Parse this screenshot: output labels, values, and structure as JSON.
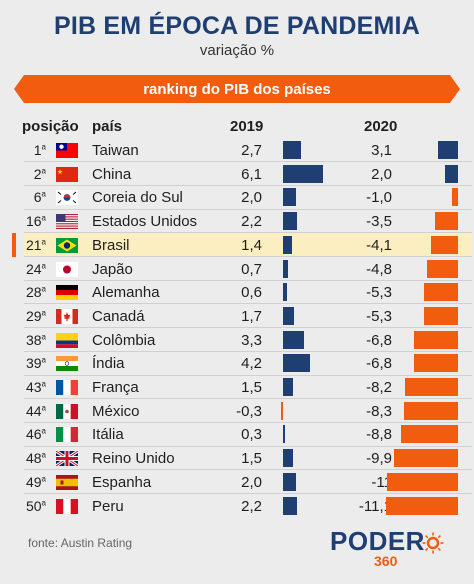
{
  "title": "PIB EM ÉPOCA DE PANDEMIA",
  "subtitle": "variação %",
  "banner": "ranking do PIB dos países",
  "headers": {
    "position": "posição",
    "country": "país",
    "year1": "2019",
    "year2": "2020"
  },
  "source": "fonte: Austin Rating",
  "logo": {
    "word": "PODER",
    "number": "360"
  },
  "colors": {
    "bar2019": "#1f3f72",
    "bar2020": "#f25c0f",
    "highlight": "#fbefc1",
    "rowLine": "#d0d0d0"
  },
  "chart_data": {
    "type": "table",
    "title": "PIB EM ÉPOCA DE PANDEMIA",
    "subtitle": "variação %",
    "columns": [
      "posição",
      "país",
      "2019",
      "2020"
    ],
    "rows": [
      {
        "rank": "1",
        "rank_suffix": "a",
        "country": "Taiwan",
        "flag": "taiwan",
        "v2019": 2.7,
        "v2020": 3.1,
        "label2019": "2,7",
        "label2020": "3,1"
      },
      {
        "rank": "2",
        "rank_suffix": "a",
        "country": "China",
        "flag": "china",
        "v2019": 6.1,
        "v2020": 2.0,
        "label2019": "6,1",
        "label2020": "2,0"
      },
      {
        "rank": "6",
        "rank_suffix": "a",
        "country": "Coreia do Sul",
        "flag": "south-korea",
        "v2019": 2.0,
        "v2020": -1.0,
        "label2019": "2,0",
        "label2020": "-1,0"
      },
      {
        "rank": "16",
        "rank_suffix": "a",
        "country": "Estados Unidos",
        "flag": "usa",
        "v2019": 2.2,
        "v2020": -3.5,
        "label2019": "2,2",
        "label2020": "-3,5"
      },
      {
        "rank": "21",
        "rank_suffix": "a",
        "country": "Brasil",
        "flag": "brazil",
        "v2019": 1.4,
        "v2020": -4.1,
        "label2019": "1,4",
        "label2020": "-4,1",
        "highlight": true
      },
      {
        "rank": "24",
        "rank_suffix": "a",
        "country": "Japão",
        "flag": "japan",
        "v2019": 0.7,
        "v2020": -4.8,
        "label2019": "0,7",
        "label2020": "-4,8"
      },
      {
        "rank": "28",
        "rank_suffix": "a",
        "country": "Alemanha",
        "flag": "germany",
        "v2019": 0.6,
        "v2020": -5.3,
        "label2019": "0,6",
        "label2020": "-5,3"
      },
      {
        "rank": "29",
        "rank_suffix": "a",
        "country": "Canadá",
        "flag": "canada",
        "v2019": 1.7,
        "v2020": -5.3,
        "label2019": "1,7",
        "label2020": "-5,3"
      },
      {
        "rank": "38",
        "rank_suffix": "a",
        "country": "Colômbia",
        "flag": "colombia",
        "v2019": 3.3,
        "v2020": -6.8,
        "label2019": "3,3",
        "label2020": "-6,8"
      },
      {
        "rank": "39",
        "rank_suffix": "a",
        "country": "Índia",
        "flag": "india",
        "v2019": 4.2,
        "v2020": -6.8,
        "label2019": "4,2",
        "label2020": "-6,8"
      },
      {
        "rank": "43",
        "rank_suffix": "a",
        "country": "França",
        "flag": "france",
        "v2019": 1.5,
        "v2020": -8.2,
        "label2019": "1,5",
        "label2020": "-8,2"
      },
      {
        "rank": "44",
        "rank_suffix": "a",
        "country": "México",
        "flag": "mexico",
        "v2019": -0.3,
        "v2020": -8.3,
        "label2019": "-0,3",
        "label2020": "-8,3"
      },
      {
        "rank": "46",
        "rank_suffix": "a",
        "country": "Itália",
        "flag": "italy",
        "v2019": 0.3,
        "v2020": -8.8,
        "label2019": "0,3",
        "label2020": "-8,8"
      },
      {
        "rank": "48",
        "rank_suffix": "a",
        "country": "Reino Unido",
        "flag": "uk",
        "v2019": 1.5,
        "v2020": -9.9,
        "label2019": "1,5",
        "label2020": "-9,9"
      },
      {
        "rank": "49",
        "rank_suffix": "a",
        "country": "Espanha",
        "flag": "spain",
        "v2019": 2.0,
        "v2020": -11.0,
        "label2019": "2,0",
        "label2020": "-11"
      },
      {
        "rank": "50",
        "rank_suffix": "a",
        "country": "Peru",
        "flag": "peru",
        "v2019": 2.2,
        "v2020": -11.1,
        "label2019": "2,2",
        "label2020": "-11,1"
      }
    ]
  }
}
